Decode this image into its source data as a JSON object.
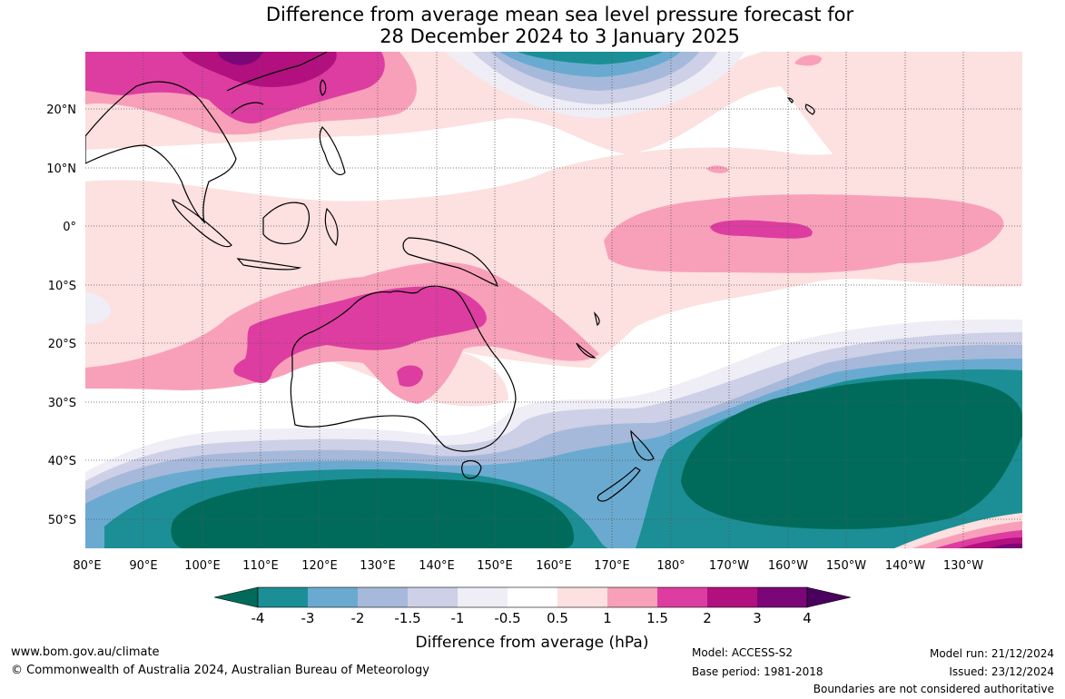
{
  "title": {
    "line1": "Difference from average mean sea level pressure forecast for",
    "line2": "28 December 2024 to 3 January 2025"
  },
  "map": {
    "lat_labels": [
      "20°N",
      "10°N",
      "0°",
      "10°S",
      "20°S",
      "30°S",
      "40°S",
      "50°S"
    ],
    "lon_labels": [
      "80°E",
      "90°E",
      "100°E",
      "110°E",
      "120°E",
      "130°E",
      "140°E",
      "150°E",
      "160°E",
      "170°E",
      "180°",
      "170°W",
      "160°W",
      "150°W",
      "140°W",
      "130°W"
    ]
  },
  "legend": {
    "title": "Difference from average (hPa)",
    "ticks": [
      "-4",
      "-3",
      "-2",
      "-1.5",
      "-1",
      "-0.5",
      "0.5",
      "1",
      "1.5",
      "2",
      "3",
      "4"
    ],
    "colors": [
      "#006b5a",
      "#1b8f95",
      "#6aaad0",
      "#a6b9da",
      "#cdd0e6",
      "#efedf5",
      "#ffffff",
      "#fde0e0",
      "#f8a0ba",
      "#dd3da0",
      "#b2107f",
      "#7a0677",
      "#4a005e"
    ]
  },
  "footer": {
    "website": "www.bom.gov.au/climate",
    "copyright": "© Commonwealth of Australia 2024, Australian Bureau of Meteorology",
    "model": "Model: ACCESS-S2",
    "base_period": "Base period: 1981-2018",
    "model_run": "Model run: 21/12/2024",
    "issued": "Issued: 23/12/2024",
    "disclaimer": "Boundaries are not considered authoritative"
  }
}
